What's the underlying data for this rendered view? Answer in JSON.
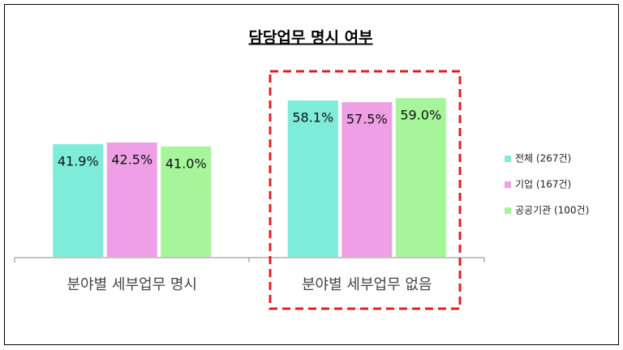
{
  "chart_data": {
    "type": "bar",
    "title": "담당업무 명시 여부",
    "categories": [
      "분야별 세부업무 명시",
      "분야별 세부업무 없음"
    ],
    "series": [
      {
        "name": "전체 (267건)",
        "color": "#7eecd9",
        "values": [
          41.9,
          58.1
        ],
        "value_labels": [
          "41.9%",
          "58.1%"
        ]
      },
      {
        "name": "기업 (167건)",
        "color": "#ee9fe5",
        "values": [
          42.5,
          57.5
        ],
        "value_labels": [
          "42.5%",
          "57.5%"
        ]
      },
      {
        "name": "공공기관 (100건)",
        "color": "#a6f59b",
        "values": [
          41.0,
          59.0
        ],
        "value_labels": [
          "41.0%",
          "59.0%"
        ]
      }
    ],
    "legend": "right"
  }
}
